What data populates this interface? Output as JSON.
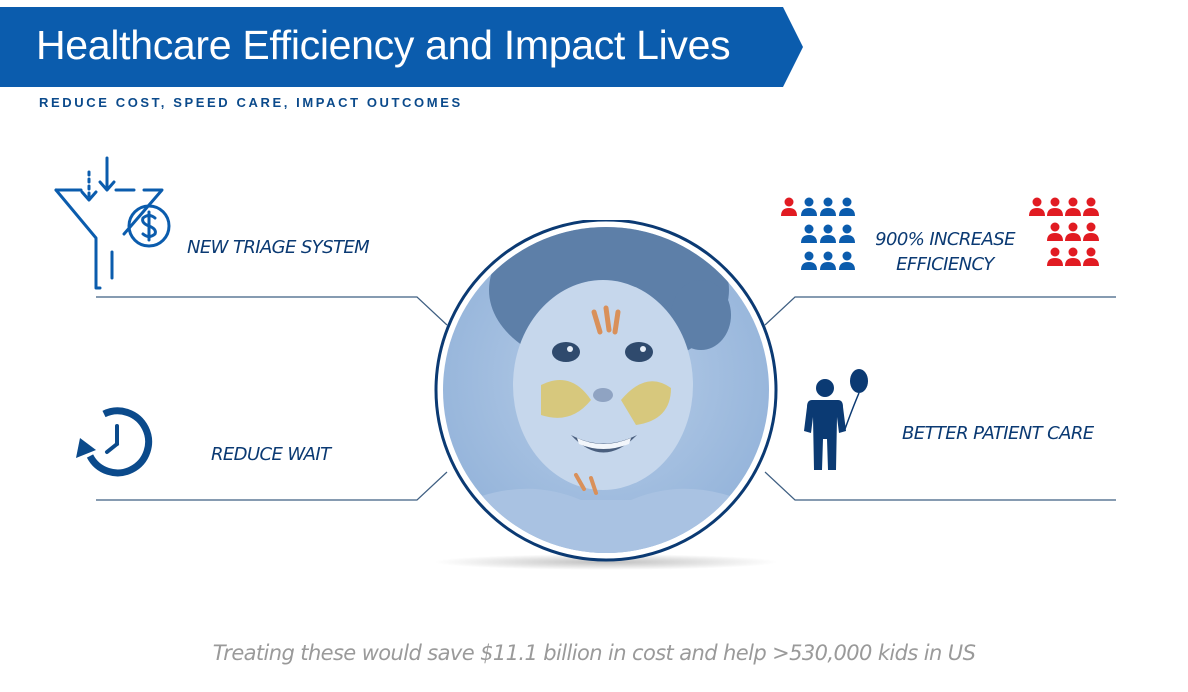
{
  "header": {
    "title": "Healthcare Efficiency and Impact Lives",
    "subtitle": "REDUCE COST, SPEED CARE, IMPACT OUTCOMES"
  },
  "features": {
    "triage": {
      "label": "NEW TRIAGE SYSTEM",
      "icon": "funnel-dollar-icon"
    },
    "efficiency": {
      "line1": "900% INCREASE",
      "line2": "EFFICIENCY",
      "icon": "people-group-icon"
    },
    "wait": {
      "label": "REDUCE WAIT",
      "icon": "clock-rewind-icon"
    },
    "care": {
      "label": "BETTER PATIENT CARE",
      "icon": "child-balloon-icon"
    }
  },
  "footer": {
    "text": "Treating these would save $11.1 billion in cost and help >530,000 kids in US"
  },
  "colors": {
    "banner": "#0b5cad",
    "primary_text": "#0b3a73",
    "accent_red": "#e11b22",
    "line": "#3f5f82",
    "footer_text": "#9a9a9a"
  }
}
